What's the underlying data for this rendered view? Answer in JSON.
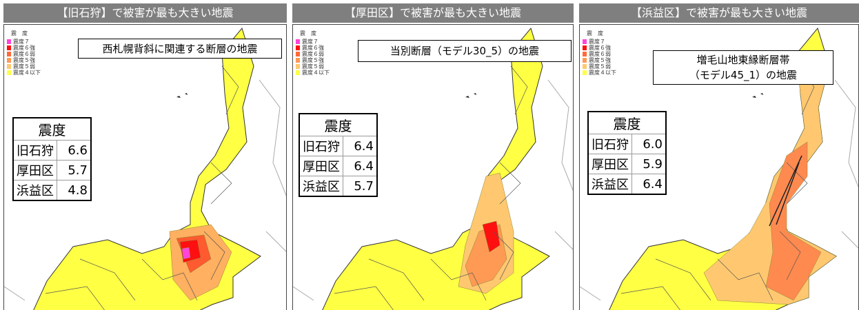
{
  "panels": [
    {
      "header": "【旧石狩】で被害が最も大きい地震",
      "legend": {
        "title": "震　度",
        "items": [
          "震度７",
          "震度６強",
          "震度６弱",
          "震度５強",
          "震度５弱",
          "震度４以下"
        ]
      },
      "scenario": [
        "西札幌背斜に関連する断層の地震"
      ],
      "table": {
        "header": "震度",
        "rows": [
          [
            "旧石狩",
            "6.6"
          ],
          [
            "厚田区",
            "5.7"
          ],
          [
            "浜益区",
            "4.8"
          ]
        ]
      }
    },
    {
      "header": "【厚田区】で被害が最も大きい地震",
      "legend": {
        "title": "震　度",
        "items": [
          "震度７",
          "震度６強",
          "震度６弱",
          "震度５強",
          "震度５弱",
          "震度４以下"
        ]
      },
      "scenario": [
        "当別断層（モデル30_5）の地震"
      ],
      "table": {
        "header": "震度",
        "rows": [
          [
            "旧石狩",
            "6.4"
          ],
          [
            "厚田区",
            "6.4"
          ],
          [
            "浜益区",
            "5.7"
          ]
        ]
      }
    },
    {
      "header": "【浜益区】で被害が最も大きい地震",
      "legend": {
        "title": "震　度",
        "items": [
          "震度７",
          "震度６強",
          "震度６弱",
          "震度５強",
          "震度５弱",
          "震度４以下"
        ]
      },
      "scenario": [
        "増毛山地東縁断層帯",
        "（モデル45_1）の地震"
      ],
      "table": {
        "header": "震度",
        "rows": [
          [
            "旧石狩",
            "6.0"
          ],
          [
            "厚田区",
            "5.9"
          ],
          [
            "浜益区",
            "6.4"
          ]
        ]
      }
    }
  ]
}
